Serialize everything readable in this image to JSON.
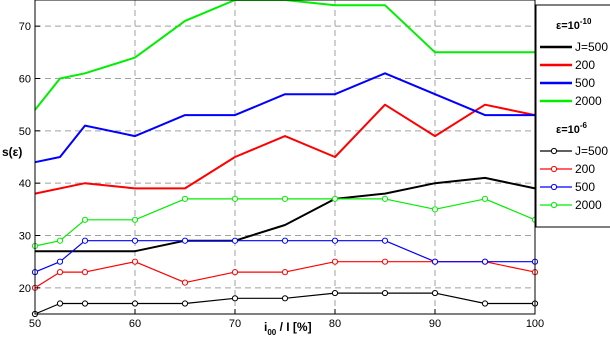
{
  "chart_data": {
    "type": "line",
    "xlabel": {
      "main": "i",
      "sub": "00",
      "rest": " / I [%]"
    },
    "ylabel": "s(ε)",
    "xlim": [
      50,
      100
    ],
    "ylim": [
      15,
      75
    ],
    "xticks": [
      50,
      60,
      70,
      80,
      90,
      100
    ],
    "yticks": [
      20,
      30,
      40,
      50,
      60,
      70
    ],
    "grid": true,
    "legend_position": "right",
    "legend_groups": [
      {
        "base": "ε=10",
        "exp": "-10"
      },
      {
        "base": "ε=10",
        "exp": "-6"
      }
    ],
    "series": [
      {
        "name": "J=500",
        "group": 0,
        "color": "#000000",
        "markers": false,
        "x": [
          50,
          52.5,
          55,
          60,
          65,
          70,
          75,
          80,
          85,
          90,
          95,
          100
        ],
        "y": [
          27,
          27,
          27,
          27,
          29,
          29,
          32,
          37,
          38,
          40,
          41,
          39
        ]
      },
      {
        "name": "200",
        "group": 0,
        "color": "#ff0000",
        "markers": false,
        "x": [
          50,
          55,
          60,
          65,
          70,
          75,
          80,
          85,
          90,
          95,
          100
        ],
        "y": [
          38,
          40,
          39,
          39,
          45,
          49,
          45,
          55,
          49,
          55,
          53
        ]
      },
      {
        "name": "500",
        "group": 0,
        "color": "#0000ff",
        "markers": false,
        "x": [
          50,
          52.5,
          55,
          60,
          65,
          70,
          75,
          80,
          85,
          90,
          95,
          100
        ],
        "y": [
          44,
          45,
          51,
          49,
          53,
          53,
          57,
          57,
          61,
          57,
          53,
          53
        ]
      },
      {
        "name": "2000",
        "group": 0,
        "color": "#00ee00",
        "markers": false,
        "x": [
          50,
          52.5,
          55,
          60,
          65,
          70,
          75,
          80,
          85,
          90,
          95,
          100
        ],
        "y": [
          54,
          60,
          61,
          64,
          71,
          75,
          75,
          74,
          74,
          65,
          65,
          65
        ]
      },
      {
        "name": "J=500",
        "group": 1,
        "color": "#000000",
        "markers": true,
        "x": [
          50,
          52.5,
          55,
          60,
          65,
          70,
          75,
          80,
          85,
          90,
          95,
          100
        ],
        "y": [
          15,
          17,
          17,
          17,
          17,
          18,
          18,
          19,
          19,
          19,
          17,
          17
        ]
      },
      {
        "name": "200",
        "group": 1,
        "color": "#ff0000",
        "markers": true,
        "x": [
          50,
          52.5,
          55,
          60,
          65,
          70,
          75,
          80,
          85,
          90,
          95,
          100
        ],
        "y": [
          20,
          23,
          23,
          25,
          21,
          23,
          23,
          25,
          25,
          25,
          25,
          23
        ]
      },
      {
        "name": "500",
        "group": 1,
        "color": "#0000ff",
        "markers": true,
        "x": [
          50,
          52.5,
          55,
          60,
          65,
          70,
          75,
          80,
          85,
          90,
          95,
          100
        ],
        "y": [
          23,
          25,
          29,
          29,
          29,
          29,
          29,
          29,
          29,
          25,
          25,
          25
        ]
      },
      {
        "name": "2000",
        "group": 1,
        "color": "#00ee00",
        "markers": true,
        "x": [
          50,
          52.5,
          55,
          60,
          65,
          70,
          75,
          80,
          85,
          90,
          95,
          100
        ],
        "y": [
          28,
          29,
          33,
          33,
          37,
          37,
          37,
          37,
          37,
          35,
          37,
          33
        ]
      }
    ]
  }
}
